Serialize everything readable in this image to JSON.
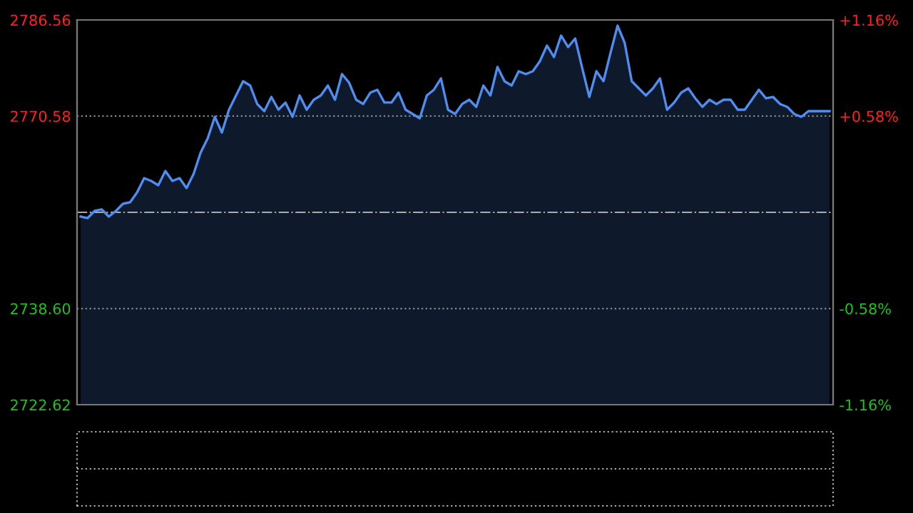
{
  "chart_data": {
    "type": "area",
    "color": "#4f8ef0",
    "categories": [
      null,
      null,
      null,
      null,
      null,
      null,
      null,
      null,
      null,
      null,
      null,
      null,
      null,
      null,
      null,
      null,
      null,
      null,
      null,
      null,
      null,
      null,
      null,
      null,
      null,
      null,
      null,
      null,
      null,
      null,
      null,
      null,
      null,
      null,
      null,
      null,
      null,
      null,
      null,
      null,
      null,
      null,
      null,
      null,
      null,
      null,
      null,
      null,
      null,
      null,
      null,
      null,
      null,
      null,
      null,
      null,
      null,
      null,
      null,
      null,
      null,
      null,
      null,
      null,
      null,
      null,
      null,
      null,
      null,
      null,
      null,
      null,
      null,
      null,
      null,
      null,
      null,
      null,
      null,
      null,
      null,
      null,
      null,
      null,
      null,
      null,
      null,
      null,
      null,
      null,
      null,
      null,
      null,
      null,
      null,
      null,
      null,
      null,
      null,
      null,
      null,
      null,
      null,
      null,
      null,
      null,
      null
    ],
    "values": [
      2753.88,
      2753.64,
      2754.83,
      2755.07,
      2753.88,
      2754.83,
      2756.01,
      2756.25,
      2757.91,
      2760.28,
      2759.8,
      2759.09,
      2761.46,
      2759.8,
      2760.28,
      2758.62,
      2760.99,
      2764.54,
      2766.91,
      2770.46,
      2767.85,
      2771.64,
      2774.01,
      2776.38,
      2775.67,
      2772.59,
      2771.4,
      2773.77,
      2771.64,
      2772.83,
      2770.46,
      2774.01,
      2771.64,
      2773.3,
      2774.01,
      2775.67,
      2773.3,
      2777.56,
      2776.14,
      2773.3,
      2772.59,
      2774.48,
      2774.96,
      2772.83,
      2772.83,
      2774.48,
      2771.64,
      2770.93,
      2770.22,
      2774.01,
      2774.96,
      2776.85,
      2771.64,
      2770.93,
      2772.59,
      2773.3,
      2772.12,
      2775.67,
      2774.01,
      2778.75,
      2776.38,
      2775.67,
      2778.04,
      2777.56,
      2778.04,
      2779.69,
      2782.3,
      2780.4,
      2783.96,
      2782.06,
      2783.48,
      2778.51,
      2773.77,
      2778.04,
      2776.38,
      2781.11,
      2785.61,
      2782.77,
      2776.38,
      2775.19,
      2774.01,
      2775.19,
      2776.85,
      2771.64,
      2772.83,
      2774.48,
      2775.19,
      2773.54,
      2772.12,
      2773.3,
      2772.59,
      2773.3,
      2773.3,
      2771.64,
      2771.64,
      2773.3,
      2774.96,
      2773.54,
      2773.77,
      2772.59,
      2772.12,
      2770.93,
      2770.46,
      2771.4,
      2771.4,
      2771.4,
      2771.4
    ],
    "ylim": [
      2722.62,
      2786.56
    ],
    "yticks": [
      2722.62,
      {
        "value": 2738.6,
        "label": "2738.60"
      },
      2770.58,
      2786.56
    ],
    "y2lim": [
      -1.16,
      1.16
    ],
    "y2ticks": [
      {
        "value": -1.16,
        "label": "-1.16%"
      },
      {
        "value": -0.58,
        "label": "-0.58%"
      },
      {
        "value": 0.58,
        "label": "+0.58%"
      },
      {
        "value": 1.16,
        "label": "+1.16%"
      }
    ],
    "ref_lines": [
      {
        "axis": "y",
        "value": 2754.59,
        "color": "#aaaaaa",
        "line_style": "dashdot"
      }
    ],
    "grid": "y",
    "tick_labels": "y",
    "legend": false
  }
}
